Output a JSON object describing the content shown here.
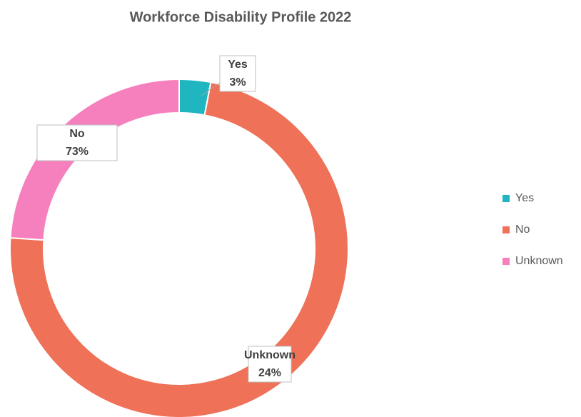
{
  "chart_data": {
    "type": "donut",
    "title": "Workforce Disability Profile 2022",
    "categories": [
      "Yes",
      "No",
      "Unknown"
    ],
    "values": [
      3,
      73,
      24
    ],
    "value_labels": [
      "3%",
      "73%",
      "24%"
    ],
    "colors": [
      "#1fb6c1",
      "#ee7158",
      "#f580bd"
    ],
    "legend": "right"
  }
}
